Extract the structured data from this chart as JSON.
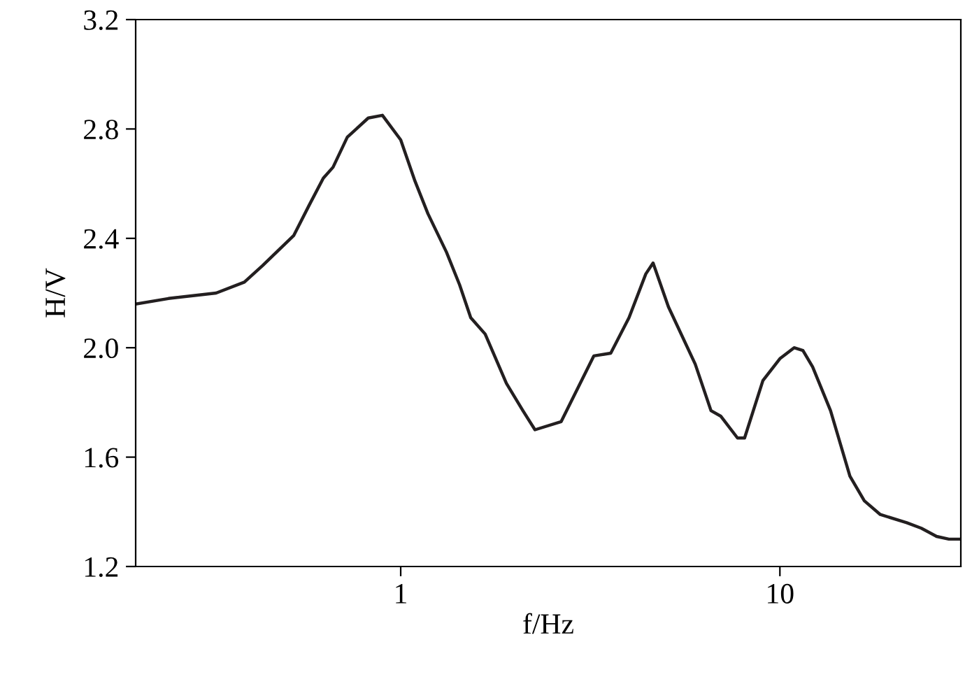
{
  "chart_data": {
    "type": "line",
    "xlabel": "f/Hz",
    "ylabel": "H/V",
    "log": "x",
    "grid": false,
    "legend": false,
    "marker": "none",
    "line_style": "solid",
    "xlim": [
      0.2,
      30
    ],
    "xticks": [
      1,
      10
    ],
    "ylim": [
      1.2,
      3.2
    ],
    "yticks": [
      1.2,
      1.6,
      {
        "value": 2,
        "label": "2.0"
      },
      2.4,
      2.8,
      3.2
    ],
    "series": [
      {
        "color": "#231f20",
        "x": [
          0.2,
          0.244,
          0.326,
          0.387,
          0.432,
          0.522,
          0.573,
          0.625,
          0.663,
          0.723,
          0.821,
          0.895,
          1.0,
          1.09,
          1.18,
          1.32,
          1.43,
          1.53,
          1.67,
          1.9,
          2.1,
          2.26,
          2.65,
          3.23,
          3.58,
          4.0,
          4.43,
          4.63,
          5.08,
          5.98,
          6.58,
          6.98,
          7.73,
          8.07,
          9.02,
          10.0,
          10.9,
          11.5,
          12.2,
          13.6,
          15.3,
          16.7,
          18.4,
          21.6,
          23.6,
          25.9,
          27.9,
          30
        ],
        "values": [
          2.16,
          2.18,
          2.2,
          2.24,
          2.3,
          2.41,
          2.52,
          2.62,
          2.66,
          2.77,
          2.84,
          2.85,
          2.76,
          2.61,
          2.49,
          2.35,
          2.23,
          2.11,
          2.05,
          1.87,
          1.77,
          1.7,
          1.73,
          1.97,
          1.98,
          2.11,
          2.27,
          2.31,
          2.15,
          1.94,
          1.77,
          1.75,
          1.67,
          1.67,
          1.88,
          1.96,
          2.0,
          1.99,
          1.93,
          1.77,
          1.53,
          1.44,
          1.39,
          1.36,
          1.34,
          1.31,
          1.3,
          1.3
        ]
      }
    ]
  }
}
